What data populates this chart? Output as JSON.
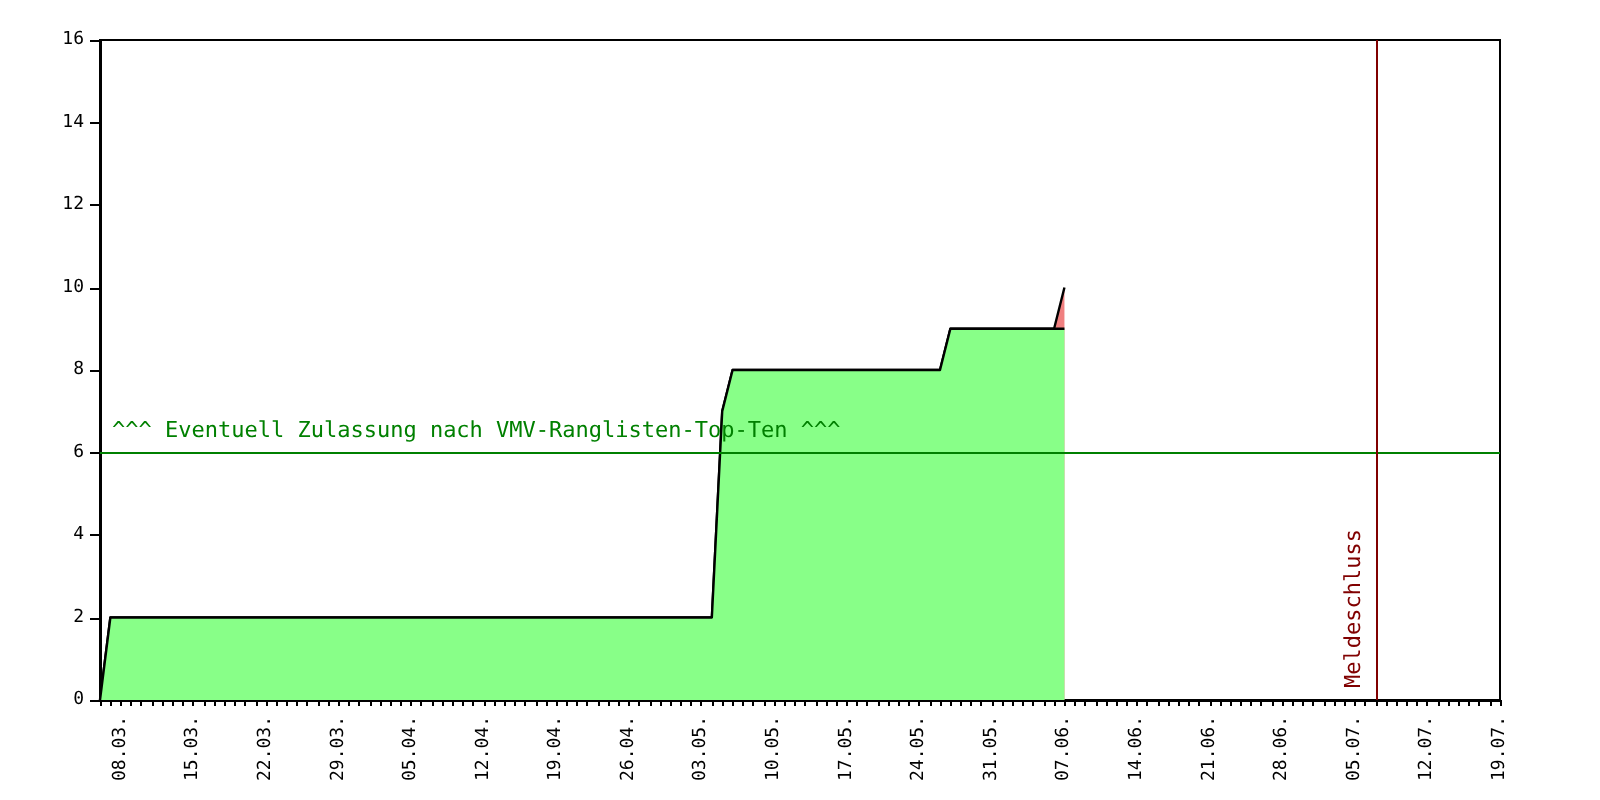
{
  "chart_data": {
    "type": "area",
    "stacked": true,
    "grid": false,
    "marker": "none",
    "x": [
      "--03-06",
      "--03-07",
      "--05-03",
      "--05-04",
      "--05-05",
      "--05-06",
      "--05-26",
      "--05-27",
      "--06-06",
      "--06-07"
    ],
    "series": [
      {
        "color": "#88ff88",
        "values": [
          0,
          2,
          2,
          2,
          7,
          8,
          8,
          9,
          9,
          9
        ]
      },
      {
        "color": "#f08080",
        "values": [
          0,
          0,
          0,
          0,
          0,
          0,
          0,
          0,
          0,
          1
        ]
      }
    ],
    "xlim": [
      "--03-06",
      "--07-19"
    ],
    "xticks": [
      {
        "value": "--03-08",
        "label": "08.03."
      },
      {
        "value": "--03-15",
        "label": "15.03."
      },
      {
        "value": "--03-22",
        "label": "22.03."
      },
      {
        "value": "--03-29",
        "label": "29.03."
      },
      {
        "value": "--04-05",
        "label": "05.04."
      },
      {
        "value": "--04-12",
        "label": "12.04."
      },
      {
        "value": "--04-19",
        "label": "19.04."
      },
      {
        "value": "--04-26",
        "label": "26.04."
      },
      {
        "value": "--05-03",
        "label": "03.05."
      },
      {
        "value": "--05-10",
        "label": "10.05."
      },
      {
        "value": "--05-17",
        "label": "17.05."
      },
      {
        "value": "--05-24",
        "label": "24.05."
      },
      {
        "value": "--05-31",
        "label": "31.05."
      },
      {
        "value": "--06-07",
        "label": "07.06."
      },
      {
        "value": "--06-14",
        "label": "14.06."
      },
      {
        "value": "--06-21",
        "label": "21.06."
      },
      {
        "value": "--06-28",
        "label": "28.06."
      },
      {
        "value": "--07-05",
        "label": "05.07."
      },
      {
        "value": "--07-12",
        "label": "12.07."
      },
      {
        "value": "--07-19",
        "label": "19.07."
      }
    ],
    "ylim": [
      0,
      16
    ],
    "yticks": [
      0,
      2,
      4,
      6,
      8,
      10,
      12,
      14,
      16
    ],
    "ref_lines": [
      {
        "axis": "y",
        "value": 6,
        "label": "^^^ Eventuell Zulassung nach VMV-Ranglisten-Top-Ten ^^^",
        "color": "#008000"
      },
      {
        "axis": "x",
        "value": "--07-07",
        "label": "Meldeschluss",
        "color": "#800000"
      }
    ]
  }
}
